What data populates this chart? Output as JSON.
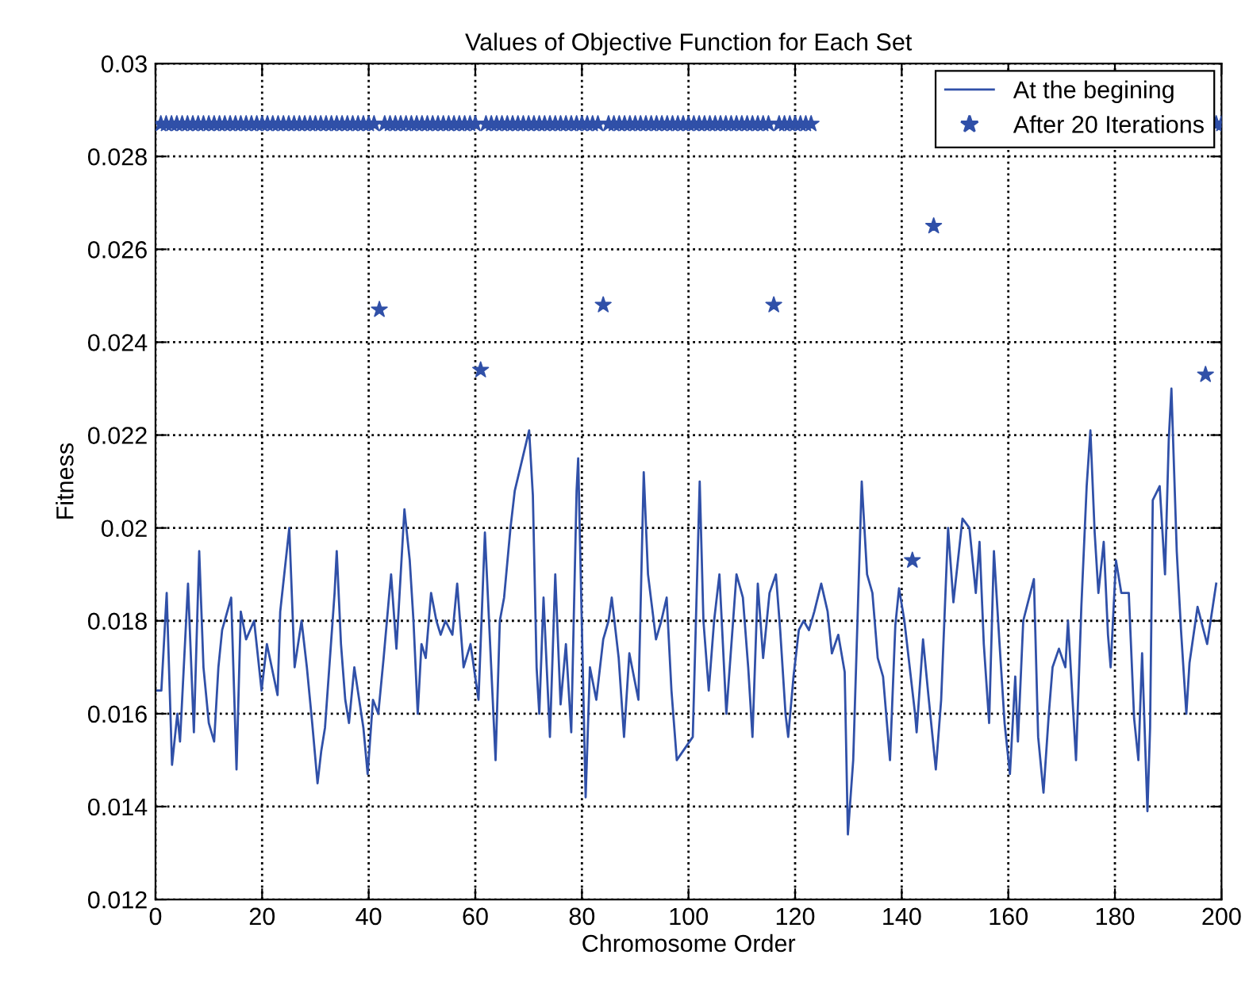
{
  "chart_data": {
    "type": "line",
    "title": "Values of Objective Function for Each Set",
    "xlabel": "Chromosome Order",
    "ylabel": "Fitness",
    "xlim": [
      0,
      200
    ],
    "xticks": [
      0,
      20,
      40,
      60,
      80,
      100,
      120,
      140,
      160,
      180,
      200
    ],
    "ylim": [
      0.012,
      0.03
    ],
    "yticks": [
      0.012,
      0.014,
      0.016,
      0.018,
      0.02,
      0.022,
      0.024,
      0.026,
      0.028,
      0.03
    ],
    "grid": true,
    "line_style": "dotted",
    "legend": "top right",
    "x": [
      1,
      2,
      3,
      4,
      5,
      6,
      7,
      8,
      9,
      10,
      11,
      12,
      13,
      14,
      15,
      16,
      17,
      18,
      19,
      20,
      21,
      22,
      23,
      24,
      25,
      26,
      27,
      28,
      29,
      30,
      31,
      32,
      33,
      34,
      35,
      36,
      37,
      38,
      39,
      40,
      41,
      42,
      43,
      44,
      45,
      46,
      47,
      48,
      49,
      50,
      51,
      52,
      53,
      54,
      55,
      56,
      57,
      58,
      59,
      60,
      61,
      62,
      63,
      64,
      65,
      66,
      67,
      68,
      69,
      70,
      71,
      72,
      73,
      74,
      75,
      76,
      77,
      78,
      79,
      80,
      81,
      82,
      83,
      84,
      85,
      86,
      87,
      88,
      89,
      90,
      91,
      92,
      93,
      94,
      95,
      96,
      97,
      98,
      99,
      100,
      101,
      102,
      103,
      104,
      105,
      106,
      107,
      108,
      109,
      110,
      111,
      112,
      113,
      114,
      115,
      116,
      117,
      118,
      119,
      120,
      121,
      122,
      123,
      124,
      125,
      126,
      127,
      128,
      129,
      130,
      131,
      132,
      133,
      134,
      135,
      136,
      137,
      138,
      139,
      140,
      141,
      142,
      143,
      144,
      145,
      146,
      147,
      148,
      149,
      150,
      151,
      152,
      153,
      154,
      155,
      156,
      157,
      158,
      159,
      160,
      161,
      162,
      163,
      164,
      165,
      166,
      167,
      168,
      169,
      170,
      171,
      172,
      173,
      174,
      175,
      176,
      177,
      178,
      179,
      180,
      181,
      182,
      183,
      184,
      185,
      186,
      187,
      188,
      189,
      190,
      191,
      192,
      193,
      194,
      195,
      196,
      197,
      198,
      199,
      200
    ],
    "series": [
      {
        "name": "At the begining",
        "color": "#3050a8",
        "line_style": "solid",
        "marker": "none",
        "x": [
          0,
          1.1,
          2.1,
          3.1,
          4.1,
          4.6,
          6.1,
          7.2,
          8.2,
          9.0,
          10.0,
          11.0,
          11.8,
          12.5,
          14.2,
          15.2,
          16.0,
          17.0,
          18.5,
          19.9,
          20.9,
          22.9,
          23.4,
          25.1,
          26.1,
          27.4,
          28.4,
          29.4,
          30.4,
          31.1,
          31.8,
          33.6,
          34.0,
          34.8,
          35.6,
          36.3,
          37.3,
          39.0,
          39.8,
          40.8,
          41.8,
          42.8,
          43.8,
          44.2,
          45.2,
          46.7,
          47.7,
          48.4,
          49.2,
          49.9,
          50.7,
          51.7,
          52.7,
          53.5,
          54.4,
          55.7,
          56.6,
          57.8,
          59.1,
          60.6,
          61.8,
          63.8,
          64.6,
          65.4,
          66.6,
          67.4,
          70.1,
          70.8,
          71.5,
          72.0,
          72.8,
          74.0,
          75.0,
          76.0,
          77.0,
          78.0,
          79.0,
          79.3,
          80.7,
          81.5,
          82.7,
          84.0,
          85.0,
          85.6,
          86.9,
          87.9,
          88.9,
          90.6,
          91.6,
          92.4,
          93.9,
          94.9,
          95.9,
          96.8,
          97.8,
          100.8,
          102.1,
          102.8,
          103.8,
          104.8,
          105.8,
          107.1,
          109.0,
          110.2,
          111.2,
          112.0,
          113.0,
          114.0,
          115.2,
          116.4,
          117.2,
          118.2,
          118.7,
          119.7,
          120.7,
          121.6,
          122.6,
          123.6,
          124.9,
          126.1,
          126.9,
          128.1,
          129.3,
          129.9,
          130.9,
          132.5,
          133.5,
          134.5,
          135.5,
          136.5,
          137.8,
          138.8,
          139.5,
          140.5,
          142.5,
          142.8,
          144.0,
          145.0,
          146.4,
          147.4,
          148.7,
          149.7,
          151.4,
          152.7,
          153.9,
          154.6,
          155.4,
          156.4,
          157.3,
          158.3,
          159.3,
          160.3,
          161.3,
          161.8,
          162.8,
          164.8,
          165.6,
          166.6,
          167.6,
          168.3,
          169.5,
          170.7,
          171.2,
          172.7,
          173.7,
          174.7,
          175.4,
          176.2,
          176.9,
          177.9,
          178.7,
          179.2,
          180.2,
          181.2,
          182.6,
          183.6,
          184.4,
          185.1,
          186.1,
          186.6,
          187.1,
          188.4,
          189.4,
          190.1,
          190.6,
          191.6,
          192.4,
          193.4,
          194.0,
          195.5,
          197.3,
          199.0
        ],
        "values": [
          0.0165,
          0.0165,
          0.0186,
          0.0149,
          0.016,
          0.0154,
          0.0188,
          0.0156,
          0.0195,
          0.017,
          0.0158,
          0.0154,
          0.017,
          0.0178,
          0.0185,
          0.0148,
          0.0182,
          0.0176,
          0.018,
          0.0165,
          0.0175,
          0.0164,
          0.0182,
          0.02,
          0.017,
          0.018,
          0.017,
          0.0158,
          0.0145,
          0.0152,
          0.0157,
          0.0186,
          0.0195,
          0.0175,
          0.0163,
          0.0158,
          0.017,
          0.0157,
          0.0147,
          0.0163,
          0.016,
          0.0172,
          0.0185,
          0.019,
          0.0174,
          0.0204,
          0.0193,
          0.018,
          0.016,
          0.0175,
          0.0172,
          0.0186,
          0.018,
          0.0177,
          0.018,
          0.0177,
          0.0188,
          0.017,
          0.0175,
          0.0163,
          0.0199,
          0.015,
          0.018,
          0.0185,
          0.02,
          0.0208,
          0.0221,
          0.0207,
          0.017,
          0.016,
          0.0185,
          0.0155,
          0.019,
          0.0162,
          0.0175,
          0.0156,
          0.0208,
          0.0215,
          0.0142,
          0.017,
          0.0163,
          0.0176,
          0.018,
          0.0185,
          0.0172,
          0.0155,
          0.0173,
          0.0163,
          0.0212,
          0.019,
          0.0176,
          0.018,
          0.0185,
          0.0165,
          0.015,
          0.0155,
          0.021,
          0.018,
          0.0165,
          0.018,
          0.019,
          0.016,
          0.019,
          0.0185,
          0.017,
          0.0155,
          0.0188,
          0.0172,
          0.0186,
          0.019,
          0.0178,
          0.016,
          0.0155,
          0.0168,
          0.0178,
          0.018,
          0.0178,
          0.0182,
          0.0188,
          0.0182,
          0.0173,
          0.0177,
          0.0169,
          0.0134,
          0.015,
          0.021,
          0.019,
          0.0186,
          0.0172,
          0.0168,
          0.015,
          0.0179,
          0.0187,
          0.018,
          0.016,
          0.0156,
          0.0176,
          0.0164,
          0.0148,
          0.0163,
          0.02,
          0.0184,
          0.0202,
          0.02,
          0.0186,
          0.0197,
          0.0175,
          0.0158,
          0.0195,
          0.0176,
          0.0158,
          0.0147,
          0.0168,
          0.0154,
          0.018,
          0.0189,
          0.0155,
          0.0143,
          0.016,
          0.017,
          0.0174,
          0.017,
          0.018,
          0.015,
          0.0183,
          0.0209,
          0.0221,
          0.0199,
          0.0186,
          0.0197,
          0.0177,
          0.017,
          0.0193,
          0.0186,
          0.0186,
          0.0159,
          0.015,
          0.0173,
          0.0139,
          0.0157,
          0.0206,
          0.0209,
          0.019,
          0.0219,
          0.023,
          0.0195,
          0.0178,
          0.016,
          0.0171,
          0.0183,
          0.0175,
          0.0188
        ]
      },
      {
        "name": "After 20 Iterations",
        "type": "scatter",
        "color": "#3050a8",
        "marker": "star",
        "values": [
          0.0287,
          0.0287,
          0.0287,
          0.0287,
          0.0287,
          0.0287,
          0.0287,
          0.0287,
          0.0287,
          0.0287,
          0.0287,
          0.0287,
          0.0287,
          0.0287,
          0.0287,
          0.0287,
          0.0287,
          0.0287,
          0.0287,
          0.0287,
          0.0287,
          0.0287,
          0.0287,
          0.0287,
          0.0287,
          0.0287,
          0.0287,
          0.0287,
          0.0287,
          0.0287,
          0.0287,
          0.0287,
          0.0287,
          0.0287,
          0.0287,
          0.0287,
          0.0287,
          0.0287,
          0.0287,
          0.0287,
          0.0287,
          0.0247,
          0.0287,
          0.0287,
          0.0287,
          0.0287,
          0.0287,
          0.0287,
          0.0287,
          0.0287,
          0.0287,
          0.0287,
          0.0287,
          0.0287,
          0.0287,
          0.0287,
          0.0287,
          0.0287,
          0.0287,
          0.0287,
          0.0234,
          0.0287,
          0.0287,
          0.0287,
          0.0287,
          0.0287,
          0.0287,
          0.0287,
          0.0287,
          0.0287,
          0.0287,
          0.0287,
          0.0287,
          0.0287,
          0.0287,
          0.0287,
          0.0287,
          0.0287,
          0.0287,
          0.0287,
          0.0287,
          0.0287,
          0.0287,
          0.0248,
          0.0287,
          0.0287,
          0.0287,
          0.0287,
          0.0287,
          0.0287,
          0.0287,
          0.0287,
          0.0287,
          0.0287,
          0.0287,
          0.0287,
          0.0287,
          0.0287,
          0.0287,
          0.0287,
          0.0287,
          0.0287,
          0.0287,
          0.0287,
          0.0287,
          0.0287,
          0.0287,
          0.0287,
          0.0287,
          0.0287,
          0.0287,
          0.0287,
          0.0287,
          0.0287,
          0.0287,
          0.0248,
          0.0287,
          0.0287,
          0.0287,
          0.0287,
          0.0287,
          0.0287,
          0.0287,
          null,
          null,
          null,
          null,
          null,
          null,
          null,
          null,
          null,
          null,
          null,
          null,
          null,
          null,
          null,
          null,
          null,
          null,
          0.0193,
          null,
          null,
          null,
          0.0265,
          null,
          null,
          null,
          null,
          null,
          null,
          null,
          null,
          null,
          null,
          null,
          null,
          null,
          null,
          null,
          null,
          null,
          null,
          null,
          null,
          null,
          null,
          null,
          null,
          null,
          null,
          null,
          null,
          null,
          null,
          null,
          null,
          null,
          null,
          null,
          null,
          null,
          null,
          null,
          null,
          null,
          null,
          null,
          null,
          null,
          null,
          null,
          null,
          null,
          null,
          0.0233,
          null,
          0.0287,
          0.0287
        ]
      }
    ]
  }
}
